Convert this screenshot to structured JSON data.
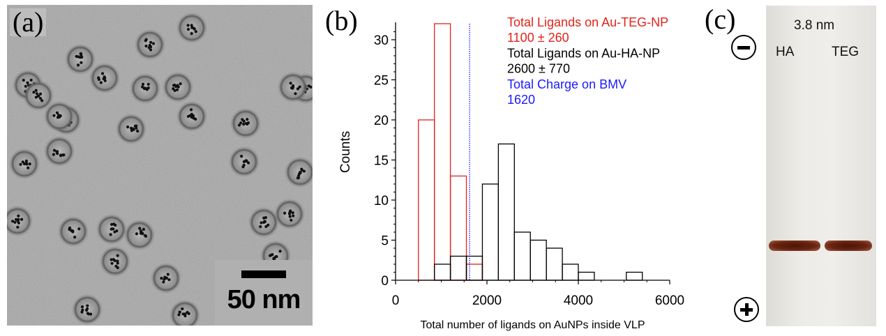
{
  "panels": {
    "a": "(a)",
    "b": "(b)",
    "c": "(c)"
  },
  "tem": {
    "scale_label": "50 nm"
  },
  "gel": {
    "size_label": "3.8 nm",
    "lane_labels": [
      "HA",
      "TEG"
    ],
    "negative_label": "minus",
    "positive_label": "plus"
  },
  "chart_data": {
    "type": "bar",
    "xlabel": "Total number of ligands on AuNPs inside VLP",
    "ylabel": "Counts",
    "xlim": [
      0,
      6000
    ],
    "ylim": [
      0,
      32
    ],
    "xticks": [
      0,
      2000,
      4000,
      6000
    ],
    "yticks": [
      0,
      5,
      10,
      15,
      20,
      25,
      30
    ],
    "grid": false,
    "series": [
      {
        "color": "#e2231a",
        "bin_edges": [
          500,
          850,
          1200,
          1550,
          1900
        ],
        "values": [
          20,
          32,
          13,
          2
        ]
      },
      {
        "color": "#000000",
        "bin_edges": [
          850,
          1200,
          1550,
          1900,
          2250,
          2600,
          2950,
          3300,
          3650,
          4000,
          4350,
          4700,
          5050,
          5400
        ],
        "values": [
          2,
          3,
          3,
          12,
          17,
          6,
          5,
          4,
          2,
          1,
          0,
          0,
          1
        ]
      }
    ],
    "vline": {
      "x": 1620,
      "color": "#1a1aff"
    },
    "annotations": [
      {
        "text": "Total Ligands on Au-TEG-NP",
        "color": "#e2231a"
      },
      {
        "text": "1100 ± 260",
        "color": "#e2231a"
      },
      {
        "text": "Total Ligands on Au-HA-NP",
        "color": "#000000"
      },
      {
        "text": "2600 ± 770",
        "color": "#000000"
      },
      {
        "text": "Total Charge on BMV",
        "color": "#1a1aff"
      },
      {
        "text": "1620",
        "color": "#1a1aff"
      }
    ]
  }
}
